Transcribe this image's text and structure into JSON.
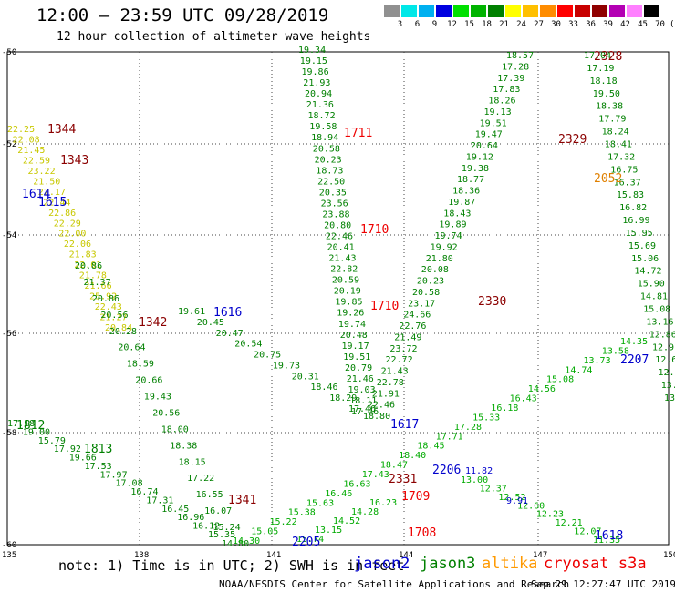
{
  "title": "12:00 – 23:59 UTC 09/28/2019",
  "subtitle": "12 hour collection of altimeter wave heights",
  "scale": {
    "labels": [
      "3",
      "6",
      "9",
      "12",
      "15",
      "18",
      "21",
      "24",
      "27",
      "30",
      "33",
      "36",
      "39",
      "42",
      "45",
      "70",
      "(ft)"
    ],
    "colors": [
      "#909090",
      "#00e8e8",
      "#00b0f0",
      "#0000e0",
      "#00e000",
      "#00b400",
      "#008000",
      "#ffff00",
      "#ffc000",
      "#ff8c00",
      "#ff0000",
      "#c80000",
      "#900000",
      "#b400b4",
      "#ff80ff",
      "#000000"
    ]
  },
  "axes": {
    "lat_labels": [
      "-50",
      "-52",
      "-54",
      "-56",
      "-58",
      "-60"
    ],
    "lon_labels": [
      "135",
      "138",
      "141",
      "144",
      "147",
      "150"
    ]
  },
  "passes": [
    {
      "id": "1344",
      "color": "#8b0000"
    },
    {
      "id": "1343",
      "color": "#8b0000"
    },
    {
      "id": "1614",
      "color": "#0000cc"
    },
    {
      "id": "1615",
      "color": "#0000cc"
    },
    {
      "id": "1711",
      "color": "#ee0000"
    },
    {
      "id": "1710",
      "color": "#ee0000"
    },
    {
      "id": "1710",
      "color": "#ee0000"
    },
    {
      "id": "1616",
      "color": "#0000cc"
    },
    {
      "id": "1342",
      "color": "#8b0000"
    },
    {
      "id": "2328",
      "color": "#8b0000"
    },
    {
      "id": "2329",
      "color": "#8b0000"
    },
    {
      "id": "2052",
      "color": "#e08000"
    },
    {
      "id": "2330",
      "color": "#8b0000"
    },
    {
      "id": "2207",
      "color": "#0000cc"
    },
    {
      "id": "1812",
      "color": "#008000"
    },
    {
      "id": "1813",
      "color": "#008000"
    },
    {
      "id": "1617",
      "color": "#0000cc"
    },
    {
      "id": "2331",
      "color": "#8b0000"
    },
    {
      "id": "2206",
      "color": "#0000cc"
    },
    {
      "id": "1709",
      "color": "#ee0000"
    },
    {
      "id": "1708",
      "color": "#ee0000"
    },
    {
      "id": "1341",
      "color": "#8b0000"
    },
    {
      "id": "2205",
      "color": "#0000cc"
    },
    {
      "id": "1618",
      "color": "#0000cc"
    }
  ],
  "tracks": [
    {
      "name": "track-top-center",
      "color": "#008000",
      "values": [
        "19.34",
        "19.15",
        "19.86",
        "21.93",
        "20.94",
        "21.36",
        "18.72",
        "19.58",
        "18.94",
        "20.58",
        "20.23",
        "18.73",
        "22.50",
        "20.35",
        "23.56",
        "23.88",
        "20.80",
        "22.46",
        "20.41",
        "21.43",
        "22.82",
        "20.59",
        "20.19",
        "19.85",
        "19.26",
        "19.74",
        "20.48",
        "19.17",
        "19.51",
        "20.79",
        "21.46",
        "19.03",
        "18.11",
        "17.46"
      ]
    },
    {
      "name": "track-left-yellow",
      "color": "#c8c800",
      "values": [
        "22.25",
        "22.08",
        "21.45",
        "22.59",
        "23.22",
        "21.50",
        "22.17",
        "22.44",
        "22.86",
        "22.29",
        "22.00",
        "22.06",
        "21.83",
        "22.01",
        "21.78",
        "21.66",
        "25.92",
        "22.43",
        "21.27",
        "20.84"
      ]
    },
    {
      "name": "track-right-top",
      "color": "#008000",
      "values": [
        "18.57",
        "17.28",
        "17.39",
        "17.83",
        "18.26",
        "19.13",
        "19.51",
        "19.47",
        "20.64",
        "19.12",
        "19.38",
        "18.77",
        "18.36",
        "19.87",
        "18.43",
        "19.89",
        "19.74",
        "19.92",
        "21.80",
        "20.08",
        "20.23",
        "20.58",
        "23.17",
        "24.66",
        "22.76",
        "21.49",
        "23.72",
        "22.72",
        "21.43",
        "22.78",
        "21.91",
        "22.46",
        "18.80"
      ]
    },
    {
      "name": "track-right-top-2",
      "color": "#008000",
      "values": [
        "17.04",
        "17.19",
        "18.18",
        "19.50",
        "18.38",
        "17.79",
        "18.24",
        "18.41",
        "17.32",
        "16.75",
        "16.37",
        "15.83",
        "16.82",
        "16.99",
        "15.95",
        "15.69",
        "15.06",
        "14.72",
        "15.90",
        "14.81",
        "15.08",
        "13.16",
        "12.86",
        "12.91",
        "12.60",
        "12.94",
        "13.00",
        "13.13"
      ]
    },
    {
      "name": "track-left-green",
      "color": "#008000",
      "values": [
        "20.86",
        "21.37",
        "20.86",
        "20.56",
        "20.28",
        "20.64",
        "18.59",
        "20.66",
        "19.43",
        "20.56",
        "18.00",
        "18.38",
        "18.15",
        "17.22",
        "16.55",
        "16.07",
        "15.24",
        "14.80"
      ]
    },
    {
      "name": "track-diag-1616",
      "color": "#008000",
      "values": [
        "19.61",
        "20.45",
        "20.47",
        "20.54",
        "20.75",
        "19.73",
        "20.31",
        "18.46",
        "18.29",
        "17.46"
      ]
    },
    {
      "name": "track-bottom-left",
      "color": "#008000",
      "values": [
        "17.18",
        "19.00",
        "15.79",
        "17.92",
        "19.66",
        "17.53",
        "17.97",
        "17.08",
        "16.74",
        "17.31",
        "16.45",
        "16.96",
        "16.12",
        "15.35"
      ]
    },
    {
      "name": "track-rising-right",
      "color": "#00aa00",
      "values": [
        "14.30",
        "15.05",
        "15.22",
        "15.38",
        "15.63",
        "16.46",
        "16.63",
        "17.43",
        "18.47",
        "18.40",
        "18.45",
        "17.71",
        "17.28",
        "15.33",
        "16.18",
        "16.43",
        "14.56",
        "15.08",
        "14.74",
        "13.73",
        "13.58",
        "14.35"
      ]
    },
    {
      "name": "track-bottom-right",
      "color": "#00aa00",
      "values": [
        "13.00",
        "12.37",
        "12.52",
        "12.60",
        "12.23",
        "12.21",
        "12.07",
        "11.35"
      ]
    },
    {
      "name": "track-bottom-center",
      "color": "#00aa00",
      "values": [
        "16.23",
        "14.28",
        "14.52",
        "13.15",
        "15.74"
      ]
    },
    {
      "name": "track-jason2",
      "color": "#0000cc",
      "values": [
        "11.82",
        "9.91"
      ]
    }
  ],
  "legend": [
    {
      "name": "jason2",
      "color": "#0000cc"
    },
    {
      "name": "jason3",
      "color": "#008000"
    },
    {
      "name": "altika",
      "color": "#ff9900"
    },
    {
      "name": "cryosat s3a",
      "color": "#ee0000"
    }
  ],
  "footer": {
    "note": "note: 1) Time is in UTC; 2) SWH is in feet",
    "credit": "NOAA/NESDIS Center for Satellite Applications and Research",
    "stamp": "Sep 29 12:27:47 UTC 2019"
  }
}
